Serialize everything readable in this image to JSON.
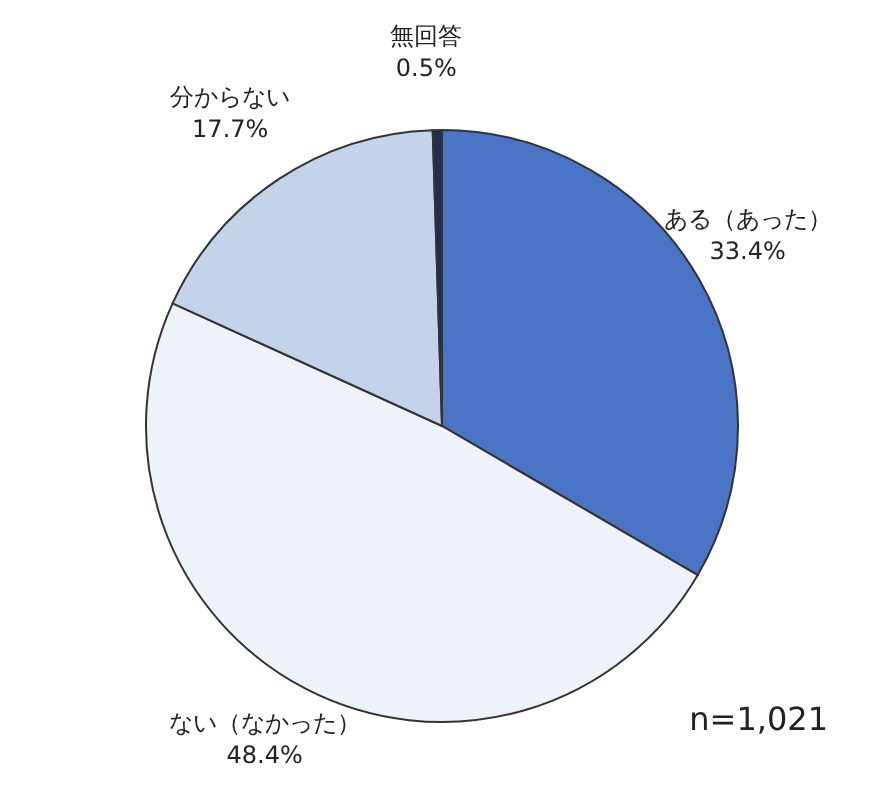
{
  "chart_data": {
    "type": "pie",
    "categories": [
      "ある（あった）",
      "ない（なかった）",
      "分からない",
      "無回答"
    ],
    "values": [
      33.4,
      48.4,
      17.7,
      0.5
    ],
    "value_labels": [
      "33.4%",
      "48.4%",
      "17.7%",
      "0.5%"
    ],
    "colors": [
      "#4a74c6",
      "#eef2f9",
      "#c3d3ea",
      "#1f2f50"
    ],
    "annotations": [
      "n=1,021"
    ]
  }
}
